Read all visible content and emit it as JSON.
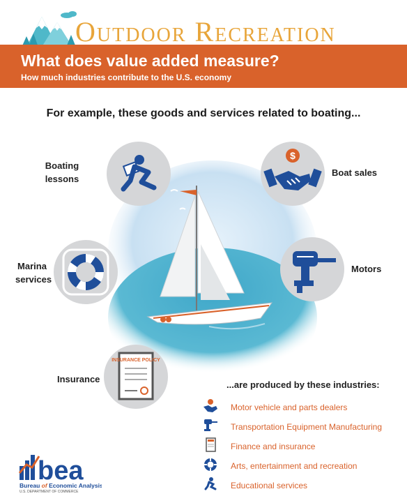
{
  "header": {
    "title": "Outdoor Recreation",
    "question": "What does value added measure?",
    "subtitle": "How much industries contribute to the U.S. economy"
  },
  "intro": "For example, these goods and services related to boating...",
  "goods": [
    {
      "label": "Boating lessons",
      "icon": "person-reading-icon"
    },
    {
      "label": "Boat sales",
      "icon": "handshake-dollar-icon"
    },
    {
      "label": "Marina services",
      "icon": "life-ring-icon"
    },
    {
      "label": "Motors",
      "icon": "outboard-motor-icon"
    },
    {
      "label": "Insurance",
      "icon": "insurance-policy-icon",
      "icon_text": "INSURANCE POLICY"
    }
  ],
  "industries_heading": "...are produced by these industries:",
  "industries": [
    {
      "label": "Motor vehicle and parts dealers",
      "icon": "handshake-dollar-icon"
    },
    {
      "label": "Transportation Equipment Manufacturing",
      "icon": "outboard-motor-icon"
    },
    {
      "label": "Finance and insurance",
      "icon": "insurance-policy-icon"
    },
    {
      "label": "Arts, entertainment and recreation",
      "icon": "life-ring-icon"
    },
    {
      "label": "Educational services",
      "icon": "person-reading-icon"
    }
  ],
  "footer": {
    "logo": "bea",
    "org_prefix": "Bureau",
    "org_of": "of",
    "org_suffix": "Economic Analysis",
    "dept": "U.S. DEPARTMENT OF COMMERCE"
  },
  "colors": {
    "orange": "#d9622b",
    "gold": "#e8a53a",
    "navy": "#1f4e9a",
    "teal": "#4fb8c9",
    "circle_gray": "#d5d6d8"
  }
}
